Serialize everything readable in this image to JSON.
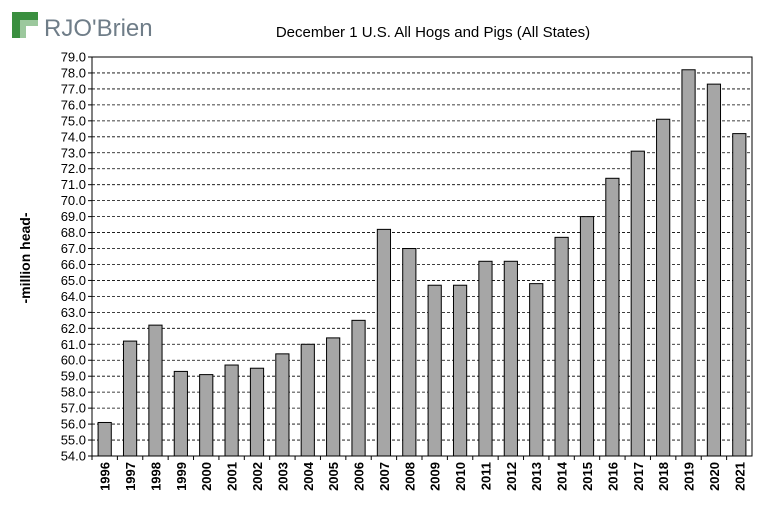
{
  "brand": {
    "name": "RJO'Brien"
  },
  "colors": {
    "bar_fill": "#a6a6a6",
    "bar_stroke": "#000000",
    "grid": "#000000",
    "logo_green": "#3a8f3f",
    "logo_light": "#9cc89d"
  },
  "chart_data": {
    "type": "bar",
    "title": "December 1 U.S. All Hogs and Pigs (All States)",
    "xlabel": "",
    "ylabel": "-million  head-",
    "ylim": [
      54.0,
      79.0
    ],
    "ytick_step": 1.0,
    "grid": true,
    "categories": [
      "1996",
      "1997",
      "1998",
      "1999",
      "2000",
      "2001",
      "2002",
      "2003",
      "2004",
      "2005",
      "2006",
      "2007",
      "2008",
      "2009",
      "2010",
      "2011",
      "2012",
      "2013",
      "2014",
      "2015",
      "2016",
      "2017",
      "2018",
      "2019",
      "2020",
      "2021"
    ],
    "values": [
      56.1,
      61.2,
      62.2,
      59.3,
      59.1,
      59.7,
      59.5,
      60.4,
      61.0,
      61.4,
      62.5,
      68.2,
      67.0,
      64.7,
      64.7,
      66.2,
      66.2,
      64.8,
      67.7,
      69.0,
      71.4,
      73.1,
      75.1,
      78.2,
      77.3,
      74.2
    ]
  }
}
